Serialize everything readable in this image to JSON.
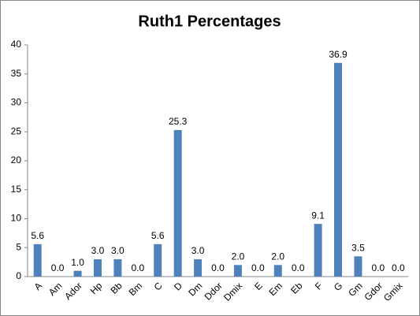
{
  "chart_data": {
    "type": "bar",
    "title": "Ruth1 Percentages",
    "categories": [
      "A",
      "Am",
      "Ador",
      "Hp",
      "Bb",
      "Bm",
      "C",
      "D",
      "Dm",
      "Ddor",
      "Dmix",
      "E",
      "Em",
      "Eb",
      "F",
      "G",
      "Gm",
      "Gdor",
      "Gmix"
    ],
    "values": [
      5.6,
      0,
      1.0,
      3.0,
      3.0,
      0,
      5.6,
      25.3,
      3.0,
      0,
      2.0,
      0,
      2.0,
      0,
      9.1,
      36.9,
      3.5,
      0,
      0
    ],
    "value_labels": [
      "5.6",
      "0.0",
      "1.0",
      "3.0",
      "3.0",
      "0.0",
      "5.6",
      "25.3",
      "3.0",
      "0.0",
      "2.0",
      "0.0",
      "2.0",
      "0.0",
      "9.1",
      "36.9",
      "3.5",
      "0.0",
      "0.0"
    ],
    "color": "#4f81bd",
    "ylim": [
      0,
      40
    ],
    "yticks": [
      0,
      5,
      10,
      15,
      20,
      25,
      30,
      35,
      40
    ],
    "grid": false
  }
}
